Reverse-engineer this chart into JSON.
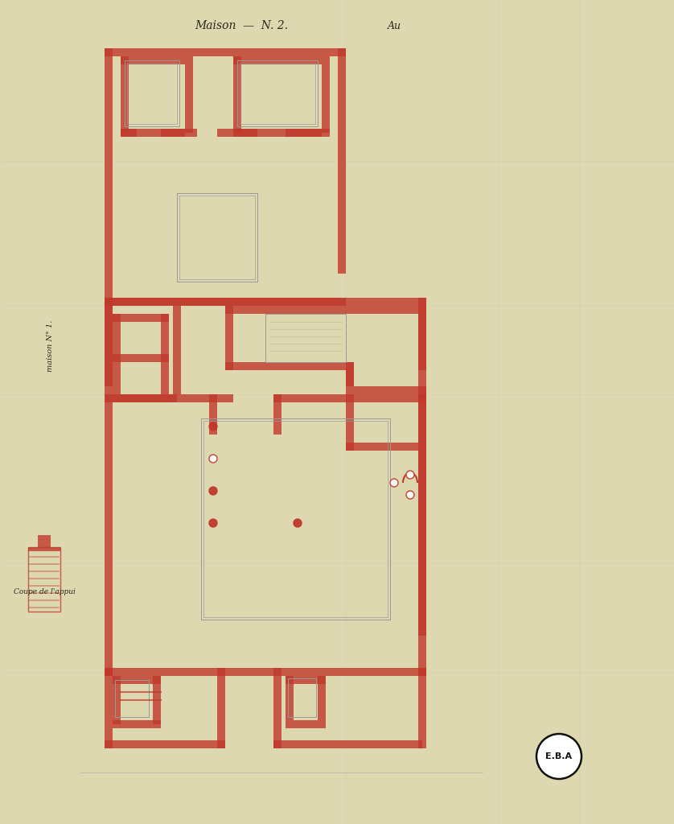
{
  "bg_color": "#f2eccc",
  "wall_color": "#c0392b",
  "wall_alpha": 0.8,
  "pencil_color": "#999999",
  "pencil_lw": 0.7,
  "title_text": "Maison  —  Nº 2.",
  "title2_text": "Au",
  "left_label": "maison N° 1.",
  "bottom_label": "Coupe de l'appui",
  "stamp_text": "E.B.A",
  "fig_bg": "#ddd8b0",
  "paper_color": "#ede8c8"
}
